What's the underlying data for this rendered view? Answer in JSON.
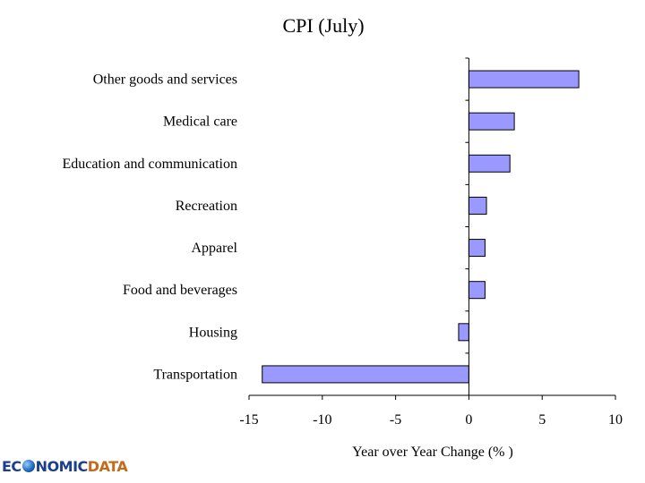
{
  "chart_data": {
    "type": "bar",
    "orientation": "horizontal",
    "title": "CPI (July)",
    "xlabel": "Year over Year Change (% )",
    "ylabel": "",
    "categories": [
      "Other goods and services",
      "Medical care",
      "Education and communication",
      "Recreation",
      "Apparel",
      "Food and beverages",
      "Housing",
      "Transportation"
    ],
    "values": [
      7.5,
      3.1,
      2.8,
      1.2,
      1.1,
      1.1,
      -0.7,
      -14.1
    ],
    "xlim": [
      -15,
      10
    ],
    "xticks": [
      -15,
      -10,
      -5,
      0,
      5,
      10
    ],
    "grid": false,
    "legend": "none",
    "bar_color": "#9999ff"
  },
  "logo": {
    "part1a": "EC",
    "part1b": "NOMIC",
    "part2": "DATA"
  }
}
